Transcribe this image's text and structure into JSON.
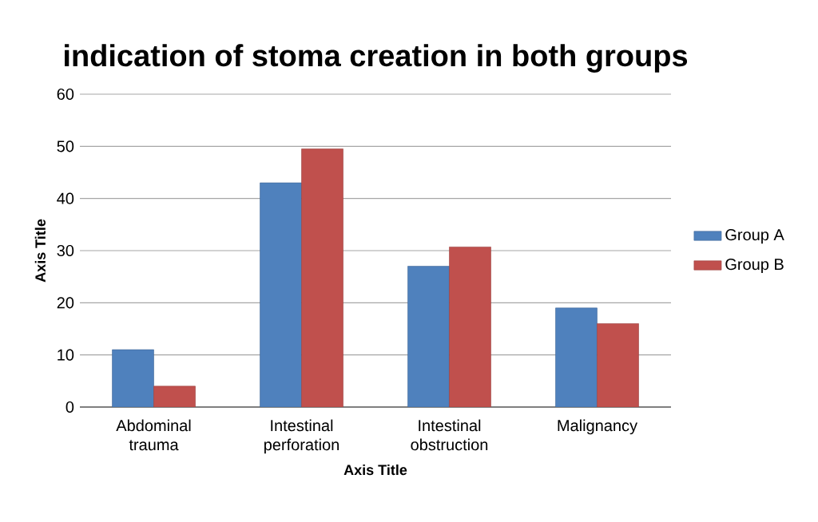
{
  "chart_data": {
    "type": "bar",
    "title": "indication of stoma creation  in both groups",
    "xlabel": "Axis Title",
    "ylabel": "Axis Title",
    "categories": [
      "Abdominal trauma",
      "Intestinal perforation",
      "Intestinal obstruction",
      "Malignancy"
    ],
    "series": [
      {
        "name": "Group A",
        "color": "#4f81bd",
        "values": [
          11,
          43,
          27,
          19
        ]
      },
      {
        "name": "Group B",
        "color": "#c0504d",
        "values": [
          4,
          49.5,
          30.7,
          16
        ]
      }
    ],
    "ylim": [
      0,
      60
    ],
    "yticks": [
      0,
      10,
      20,
      30,
      40,
      50,
      60
    ],
    "grid": "y",
    "legend": "right"
  }
}
